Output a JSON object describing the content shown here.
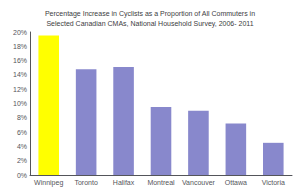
{
  "chart_data": {
    "type": "bar",
    "title": "Percentage Increase in Cyclists as a Proportion of All Commuters in\nSelected Canadian CMAs, National Household Survey, 2006- 2011",
    "categories": [
      "Winnipeg",
      "Toronto",
      "Halifax",
      "Montreal",
      "Vancouver",
      "Ottawa",
      "Victoria"
    ],
    "values": [
      19.5,
      14.8,
      15.1,
      9.5,
      9.0,
      7.2,
      4.5
    ],
    "colors": [
      "#FFFF00",
      "#8888CC",
      "#8888CC",
      "#8888CC",
      "#8888CC",
      "#8888CC",
      "#8888CC"
    ],
    "ylim": [
      0,
      20
    ],
    "yticks": [
      {
        "value": 0,
        "label": "0%"
      },
      {
        "value": 2,
        "label": "2%"
      },
      {
        "value": 4,
        "label": "4%"
      },
      {
        "value": 6,
        "label": "6%"
      },
      {
        "value": 8,
        "label": "8%"
      },
      {
        "value": 10,
        "label": "10%"
      },
      {
        "value": 12,
        "label": "12%"
      },
      {
        "value": 14,
        "label": "14%"
      },
      {
        "value": 16,
        "label": "16%"
      },
      {
        "value": 18,
        "label": "18%"
      },
      {
        "value": 20,
        "label": "20%"
      }
    ],
    "grid": false
  }
}
